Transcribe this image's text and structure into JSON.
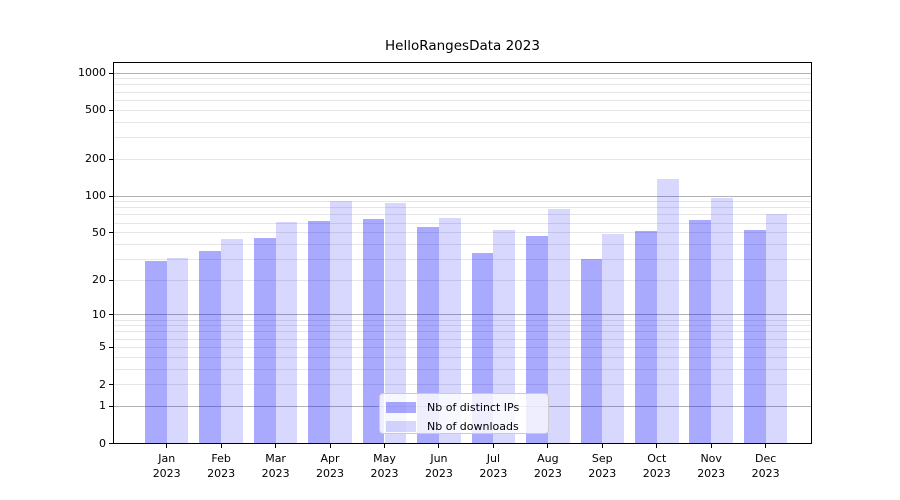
{
  "title": "HelloRangesData 2023",
  "colors": {
    "ips_bar": "rgba(10,10,250,0.35)",
    "downloads_bar": "rgba(10,10,250,0.16)",
    "major_grid": "#b2b2b2",
    "minor_grid": "#e6e6e6",
    "axis": "#000000",
    "text": "#000000"
  },
  "legend": {
    "items": [
      {
        "label": "Nb of distinct IPs"
      },
      {
        "label": "Nb of downloads"
      }
    ]
  },
  "chart_data": {
    "type": "bar",
    "title": "HelloRangesData 2023",
    "categories": [
      "Jan 2023",
      "Feb 2023",
      "Mar 2023",
      "Apr 2023",
      "May 2023",
      "Jun 2023",
      "Jul 2023",
      "Aug 2023",
      "Sep 2023",
      "Oct 2023",
      "Nov 2023",
      "Dec 2023"
    ],
    "series": [
      {
        "name": "Nb of distinct IPs",
        "values": [
          29,
          35,
          45,
          62,
          65,
          56,
          34,
          47,
          30,
          52,
          63,
          53
        ]
      },
      {
        "name": "Nb of downloads",
        "values": [
          31,
          44,
          61,
          91,
          87,
          66,
          53,
          78,
          49,
          137,
          96,
          71
        ]
      }
    ],
    "xlabel": "",
    "ylabel": "",
    "yscale": "log1p",
    "y_ticks": [
      0,
      1,
      2,
      5,
      10,
      20,
      50,
      100,
      200,
      500,
      1000
    ],
    "ylim_top_value": 1230,
    "grid": "major-dark-at-decades, minor-light",
    "legend_position": "lower center"
  }
}
